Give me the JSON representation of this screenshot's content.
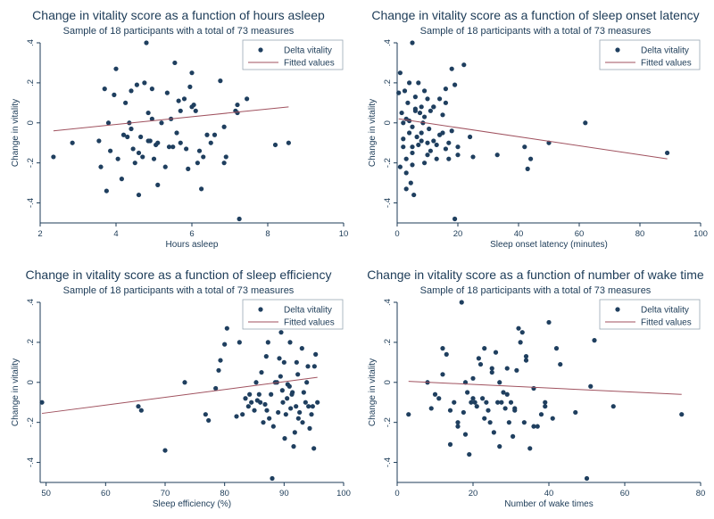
{
  "chart_data": [
    {
      "type": "scatter",
      "title": "Change in vitality score as a function of hours asleep",
      "subtitle": "Sample of 18 participants with a total of 73 measures",
      "xlabel": "Hours asleep",
      "ylabel": "Change in vitality",
      "xlim": [
        2,
        10
      ],
      "ylim": [
        -0.5,
        0.4
      ],
      "xticks": [
        2,
        4,
        6,
        8,
        10
      ],
      "xtick_labels": [
        "2",
        "4",
        "6",
        "8",
        "10"
      ],
      "yticks": [
        -0.4,
        -0.2,
        0,
        0.2,
        0.4
      ],
      "ytick_labels": [
        "-.4",
        "-.2",
        "0",
        ".2",
        ".4"
      ],
      "legend": [
        "Delta vitality",
        "Fitted values"
      ],
      "legend_position": "top-right",
      "grid": false,
      "colors": {
        "points": "#1f3f5f",
        "fit": "#a0525f",
        "axis": "#1c3b57"
      },
      "series": [
        {
          "name": "Delta vitality",
          "kind": "scatter",
          "x": [
            2.35,
            2.85,
            3.55,
            3.7,
            3.75,
            3.8,
            3.85,
            3.95,
            4.0,
            4.15,
            4.2,
            4.25,
            4.3,
            4.35,
            4.4,
            4.45,
            4.5,
            4.55,
            4.6,
            4.65,
            4.7,
            4.75,
            4.8,
            4.85,
            4.9,
            4.95,
            5.0,
            5.05,
            5.1,
            5.2,
            5.3,
            5.35,
            5.45,
            5.5,
            5.55,
            5.6,
            5.65,
            5.7,
            5.8,
            5.85,
            5.9,
            5.95,
            6.0,
            6.05,
            6.1,
            6.15,
            6.2,
            6.25,
            6.3,
            6.4,
            6.5,
            6.6,
            6.75,
            6.85,
            6.9,
            7.15,
            7.2,
            7.25,
            7.45,
            8.2,
            8.55,
            4.05,
            4.6,
            4.95,
            5.7,
            6.0,
            4.4,
            5.1,
            3.6,
            7.2,
            6.85,
            5.4,
            4.85
          ],
          "y": [
            -0.17,
            -0.1,
            -0.09,
            0.17,
            -0.34,
            0.0,
            -0.14,
            0.14,
            0.27,
            -0.28,
            -0.06,
            0.1,
            -0.07,
            0.0,
            -0.03,
            -0.13,
            -0.2,
            0.19,
            -0.15,
            -0.07,
            -0.17,
            0.2,
            0.4,
            0.05,
            -0.09,
            0.17,
            -0.18,
            -0.11,
            -0.31,
            0.0,
            -0.22,
            0.15,
            0.02,
            -0.12,
            0.3,
            -0.05,
            0.11,
            0.06,
            0.12,
            -0.13,
            -0.23,
            0.18,
            0.25,
            0.09,
            0.06,
            -0.2,
            -0.14,
            -0.33,
            -0.17,
            -0.06,
            -0.1,
            -0.06,
            0.21,
            -0.2,
            -0.17,
            0.06,
            0.05,
            -0.48,
            0.12,
            -0.11,
            -0.1,
            -0.18,
            -0.36,
            0.02,
            -0.1,
            0.08,
            0.16,
            -0.1,
            -0.22,
            0.09,
            -0.02,
            -0.12,
            -0.09
          ]
        },
        {
          "name": "Fitted values",
          "kind": "line",
          "x": [
            2.35,
            8.55
          ],
          "y": [
            -0.04,
            0.08
          ]
        }
      ]
    },
    {
      "type": "scatter",
      "title": "Change in vitality score as a function of sleep onset latency",
      "subtitle": "Sample of 18 participants with a total of 73 measures",
      "xlabel": "Sleep onset latency (minutes)",
      "ylabel": "Change in vitality",
      "xlim": [
        0,
        100
      ],
      "ylim": [
        -0.5,
        0.4
      ],
      "xticks": [
        0,
        20,
        40,
        60,
        80,
        100
      ],
      "xtick_labels": [
        "0",
        "20",
        "40",
        "60",
        "80",
        "100"
      ],
      "yticks": [
        -0.4,
        -0.2,
        0,
        0.2,
        0.4
      ],
      "ytick_labels": [
        "-.4",
        "-.2",
        "0",
        ".2",
        ".4"
      ],
      "legend": [
        "Delta vitality",
        "Fitted values"
      ],
      "legend_position": "top-right",
      "grid": false,
      "colors": {
        "points": "#1f3f5f",
        "fit": "#a0525f",
        "axis": "#1c3b57"
      },
      "series": [
        {
          "name": "Delta vitality",
          "kind": "scatter",
          "x": [
            0.5,
            1,
            1,
            1.5,
            2,
            2,
            2.5,
            3,
            3,
            3,
            3.5,
            4,
            4,
            4.5,
            5,
            5,
            5,
            5.5,
            6,
            6,
            6.5,
            7,
            7,
            7.5,
            8,
            8,
            8.5,
            9,
            9,
            10,
            10,
            10.5,
            11,
            11,
            12,
            12,
            13,
            13,
            14,
            15,
            15,
            16,
            16,
            17,
            17,
            18,
            18,
            19,
            19,
            20,
            20,
            22,
            24,
            25,
            33,
            42,
            43,
            44,
            50,
            62,
            89,
            2,
            3,
            4,
            5,
            6,
            8,
            10,
            12,
            14,
            16,
            5,
            9
          ],
          "y": [
            0.15,
            -0.22,
            0.25,
            0.05,
            -0.12,
            0.0,
            0.16,
            -0.33,
            -0.18,
            0.02,
            0.1,
            0.2,
            -0.05,
            -0.3,
            0.4,
            -0.15,
            -0.02,
            -0.36,
            0.06,
            0.13,
            -0.07,
            0.2,
            -0.11,
            0.05,
            0.08,
            -0.05,
            0.0,
            -0.2,
            0.16,
            -0.1,
            0.12,
            -0.03,
            -0.14,
            0.06,
            -0.09,
            0.08,
            -0.18,
            -0.11,
            0.12,
            -0.05,
            0.04,
            0.17,
            -0.13,
            -0.18,
            -0.1,
            0.27,
            -0.04,
            -0.48,
            0.19,
            -0.12,
            -0.16,
            0.29,
            -0.07,
            -0.17,
            -0.16,
            -0.12,
            -0.23,
            -0.18,
            -0.1,
            0.0,
            -0.15,
            -0.08,
            -0.25,
            0.01,
            -0.21,
            0.07,
            -0.09,
            -0.16,
            0.08,
            -0.06,
            0.1,
            -0.12,
            0.03
          ]
        },
        {
          "name": "Fitted values",
          "kind": "line",
          "x": [
            0.5,
            89
          ],
          "y": [
            0.02,
            -0.18
          ]
        }
      ]
    },
    {
      "type": "scatter",
      "title": "Change in vitality score as a function of sleep efficiency",
      "subtitle": "Sample of 18 participants with a total of 73 measures",
      "xlabel": "Sleep efficiency (%)",
      "ylabel": "Change in vitality",
      "xlim": [
        49,
        100
      ],
      "ylim": [
        -0.5,
        0.4
      ],
      "xticks": [
        50,
        60,
        70,
        80,
        90,
        100
      ],
      "xtick_labels": [
        "50",
        "60",
        "70",
        "80",
        "90",
        "100"
      ],
      "yticks": [
        -0.4,
        -0.2,
        0,
        0.2,
        0.4
      ],
      "ytick_labels": [
        "-.4",
        "-.2",
        "0",
        ".2",
        ".4"
      ],
      "legend": [
        "Delta vitality",
        "Fitted values"
      ],
      "legend_position": "top-right",
      "grid": false,
      "colors": {
        "points": "#1f3f5f",
        "fit": "#a0525f",
        "axis": "#1c3b57"
      },
      "series": [
        {
          "name": "Delta vitality",
          "kind": "scatter",
          "x": [
            49.3,
            65.5,
            66,
            70,
            73.3,
            76.8,
            77.3,
            78.5,
            79,
            79.3,
            80,
            80.4,
            82,
            82.5,
            83,
            84,
            84.5,
            85,
            85.3,
            85.8,
            86,
            86.5,
            87,
            87.3,
            87.8,
            88,
            88.5,
            89,
            89.2,
            89.5,
            89.8,
            90,
            90.3,
            90.6,
            91,
            91.3,
            91.6,
            92,
            92.3,
            92.6,
            93,
            93.3,
            93.6,
            94,
            94.3,
            94.6,
            95,
            95.3,
            95.6,
            88.2,
            87.5,
            90.5,
            91.8,
            93.8,
            94.8,
            86.2,
            84.2,
            83.5,
            92.1,
            89.7,
            91.1,
            85.5,
            90.9,
            93.1,
            95.1,
            86.8,
            88.8,
            92.4,
            94.1,
            90.1,
            87.1,
            91.4,
            89.4
          ],
          "y": [
            -0.1,
            -0.12,
            -0.14,
            -0.34,
            0.0,
            -0.16,
            -0.19,
            -0.03,
            0.06,
            0.11,
            0.19,
            0.27,
            -0.17,
            0.2,
            -0.16,
            -0.12,
            -0.1,
            -0.14,
            0.0,
            -0.06,
            -0.1,
            -0.2,
            0.13,
            0.2,
            -0.06,
            -0.48,
            0.0,
            -0.15,
            0.12,
            0.25,
            -0.1,
            0.1,
            -0.16,
            -0.01,
            0.2,
            -0.06,
            -0.32,
            -0.12,
            0.04,
            -0.15,
            0.17,
            -0.05,
            -0.1,
            0.08,
            -0.23,
            -0.16,
            -0.33,
            0.14,
            -0.1,
            -0.22,
            -0.18,
            -0.08,
            -0.25,
            0.0,
            -0.12,
            0.05,
            -0.06,
            -0.08,
            0.1,
            -0.04,
            -0.13,
            -0.09,
            -0.02,
            -0.2,
            0.08,
            -0.11,
            0.0,
            -0.18,
            -0.12,
            -0.28,
            -0.14,
            -0.05,
            0.03
          ]
        },
        {
          "name": "Fitted values",
          "kind": "line",
          "x": [
            49.3,
            95.6
          ],
          "y": [
            -0.155,
            0.025
          ]
        }
      ]
    },
    {
      "type": "scatter",
      "title": "Change in vitality score as a function of number of wake time",
      "subtitle": "Sample of 18 participants with a total of 73 measures",
      "xlabel": "Number of wake times",
      "ylabel": "Change in vitality",
      "xlim": [
        0,
        80
      ],
      "ylim": [
        -0.5,
        0.4
      ],
      "xticks": [
        0,
        20,
        40,
        60,
        80
      ],
      "xtick_labels": [
        "0",
        "20",
        "40",
        "60",
        "80"
      ],
      "yticks": [
        -0.4,
        -0.2,
        0,
        0.2,
        0.4
      ],
      "ytick_labels": [
        "-.4",
        "-.2",
        "0",
        ".2",
        ".4"
      ],
      "legend": [
        "Delta vitality",
        "Fitted values"
      ],
      "legend_position": "top-right",
      "grid": false,
      "colors": {
        "points": "#1f3f5f",
        "fit": "#a0525f",
        "axis": "#1c3b57"
      },
      "series": [
        {
          "name": "Delta vitality",
          "kind": "scatter",
          "x": [
            3,
            8,
            9,
            10,
            11,
            12,
            13,
            14,
            15,
            16,
            17,
            17.5,
            18,
            18.5,
            19,
            19.5,
            20,
            20.5,
            21,
            21.5,
            22,
            22.5,
            23,
            23.5,
            24,
            24.5,
            25,
            25.5,
            26,
            26.5,
            27,
            27.5,
            28,
            28.5,
            29,
            29.5,
            30,
            30.5,
            31,
            31.5,
            32,
            32.5,
            33,
            33.5,
            34,
            35,
            36,
            37,
            38,
            39,
            40,
            41,
            42,
            43,
            50,
            51,
            52,
            57,
            75,
            12,
            14,
            16,
            20,
            23,
            27,
            29,
            31,
            34,
            36,
            39,
            18,
            25,
            47
          ],
          "y": [
            -0.16,
            0.0,
            -0.13,
            -0.06,
            -0.08,
            0.04,
            0.14,
            -0.31,
            -0.1,
            -0.2,
            0.4,
            -0.15,
            0.0,
            -0.05,
            -0.36,
            -0.1,
            0.02,
            -0.1,
            -0.12,
            0.12,
            0.09,
            -0.08,
            0.17,
            -0.1,
            -0.14,
            -0.2,
            0.07,
            -0.25,
            0.15,
            -0.1,
            -0.32,
            -0.1,
            -0.05,
            -0.13,
            0.07,
            -0.2,
            -0.1,
            -0.27,
            -0.13,
            0.06,
            0.27,
            0.2,
            0.25,
            -0.2,
            0.11,
            -0.33,
            -0.22,
            -0.22,
            -0.16,
            -0.12,
            0.3,
            -0.18,
            0.17,
            0.09,
            -0.48,
            -0.02,
            0.21,
            -0.12,
            -0.16,
            0.17,
            -0.14,
            -0.22,
            -0.08,
            -0.18,
            0.0,
            -0.06,
            -0.14,
            0.13,
            -0.03,
            -0.1,
            -0.26,
            0.05,
            -0.15
          ]
        },
        {
          "name": "Fitted values",
          "kind": "line",
          "x": [
            3,
            75
          ],
          "y": [
            0.005,
            -0.06
          ]
        }
      ]
    }
  ]
}
